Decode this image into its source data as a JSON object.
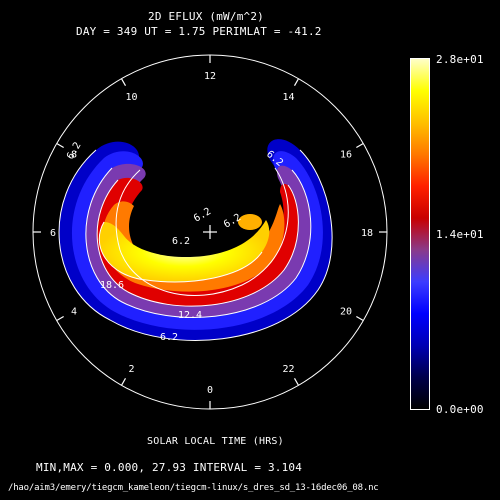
{
  "title": "2D EFLUX (mW/m^2)",
  "subtitle": "DAY = 349  UT =  1.75  PERIMLAT = -41.2",
  "xlabel": "SOLAR LOCAL TIME (HRS)",
  "stats": "MIN,MAX =      0.000,      27.93 INTERVAL =       3.104",
  "footer_path": "/hao/aim3/emery/tiegcm_kameleon/tiegcm-linux/s_dres_sd_13-16dec06_08.nc",
  "colorbar": {
    "max_label": "2.8e+01",
    "mid_label": "1.4e+01",
    "min_label": "0.0e+00",
    "colors": [
      "#000000",
      "#00004a",
      "#0000b4",
      "#0000ff",
      "#3c3cff",
      "#8a3a8a",
      "#c80000",
      "#ff2000",
      "#ff7800",
      "#ffc000",
      "#ffff00",
      "#ffffc8"
    ]
  },
  "colors": {
    "background": "#000000",
    "contour": "#ffffff"
  },
  "chart_data": {
    "type": "polar-contour",
    "title": "2D EFLUX (mW/m^2)",
    "subtitle": "DAY = 349  UT =  1.75  PERIMLAT = -41.2",
    "xlabel": "SOLAR LOCAL TIME (HRS)",
    "hour_ticks": [
      "0",
      "2",
      "4",
      "6",
      "8",
      "10",
      "12",
      "14",
      "16",
      "18",
      "20",
      "22"
    ],
    "min": 0.0,
    "max": 27.93,
    "interval": 3.104,
    "colorbar_range": [
      0,
      28
    ],
    "contour_labels": [
      "6.2",
      "6.2",
      "6.2",
      "6.2",
      "6.2",
      "12.4",
      "6.2",
      "18.6"
    ],
    "oval": {
      "description": "auroral energy flux oval",
      "peak_value": 27.93,
      "peak_local_time_hours": 5.0
    }
  }
}
